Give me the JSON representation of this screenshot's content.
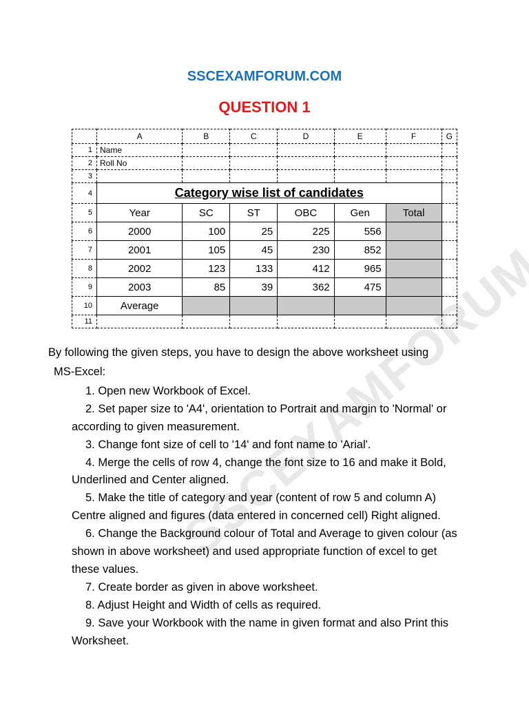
{
  "site_title": "SSCEXAMFORUM.COM",
  "question_title": "QUESTION 1",
  "watermark": "SSCEXAMFORUM.COM",
  "columns": [
    "A",
    "B",
    "C",
    "D",
    "E",
    "F",
    "G"
  ],
  "row1_label": "1",
  "row1_text": "Name",
  "row2_label": "2",
  "row2_text": "Roll No",
  "row3_label": "3",
  "row4_label": "4",
  "merged_title": "Category wise list of candidates",
  "row5_label": "5",
  "headers": [
    "Year",
    "SC",
    "ST",
    "OBC",
    "Gen",
    "Total"
  ],
  "data_rows": [
    {
      "label": "6",
      "year": "2000",
      "sc": "100",
      "st": "25",
      "obc": "225",
      "gen": "556"
    },
    {
      "label": "7",
      "year": "2001",
      "sc": "105",
      "st": "45",
      "obc": "230",
      "gen": "852"
    },
    {
      "label": "8",
      "year": "2002",
      "sc": "123",
      "st": "133",
      "obc": "412",
      "gen": "965"
    },
    {
      "label": "9",
      "year": "2003",
      "sc": "85",
      "st": "39",
      "obc": "362",
      "gen": "475"
    }
  ],
  "row10_label": "10",
  "average_label": "Average",
  "row11_label": "11",
  "intro": "By following the given steps, you have to design the above worksheet using",
  "intro2": "MS-Excel:",
  "steps": [
    "1. Open new Workbook of Excel.",
    "2. Set paper size to 'A4', orientation to Portrait and margin to 'Normal' or",
    "according to given measurement.",
    "3. Change font size of cell to '14' and font name to 'Arial'.",
    "4. Merge the cells of row 4, change the font size to 16 and make it Bold,",
    "Underlined and Center aligned.",
    "5. Make the title of category and year (content of row 5 and column A)",
    "Centre aligned and figures (data entered in concerned cell) Right aligned.",
    "6. Change the Background colour of Total and Average to given colour (as",
    "shown in above worksheet) and used appropriate function of excel to get",
    "these values.",
    "7. Create border as given in above worksheet.",
    "8. Adjust Height and Width of cells as required.",
    "9. Save your Workbook with the name in given format and also Print this",
    "Worksheet."
  ],
  "step_cont_flags": [
    false,
    false,
    true,
    false,
    false,
    true,
    false,
    true,
    false,
    true,
    true,
    false,
    false,
    false,
    true
  ],
  "colors": {
    "site_title": "#1f6fb3",
    "question_title": "#d42020",
    "shade": "#c9c9c9",
    "watermark": "#e8e8e8"
  }
}
